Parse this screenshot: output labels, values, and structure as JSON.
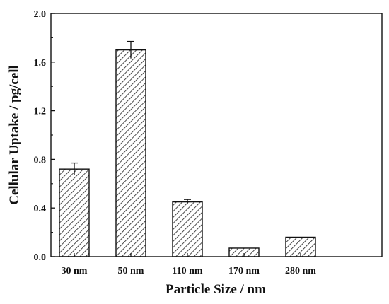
{
  "chart_data": {
    "type": "bar",
    "title": "",
    "xlabel": "Particle Size / nm",
    "ylabel": "Cellular Uptake / pg/cell",
    "categories": [
      "30 nm",
      "50 nm",
      "110 nm",
      "170 nm",
      "280 nm"
    ],
    "values": [
      0.72,
      1.7,
      0.45,
      0.07,
      0.16
    ],
    "errors": [
      0.05,
      0.07,
      0.02,
      0.0,
      0.0
    ],
    "ylim": [
      0,
      2.0
    ],
    "yticks": [
      0.0,
      0.4,
      0.8,
      1.2,
      1.6,
      2.0
    ],
    "yticklabels": [
      "0.0",
      "0.4",
      "0.8",
      "1.2",
      "1.6",
      "2.0"
    ],
    "bar_fill": "hatched",
    "colors": {
      "bar_stroke": "#111111",
      "hatch": "#222222",
      "axis": "#111111"
    },
    "grid": false,
    "legend": "none"
  }
}
